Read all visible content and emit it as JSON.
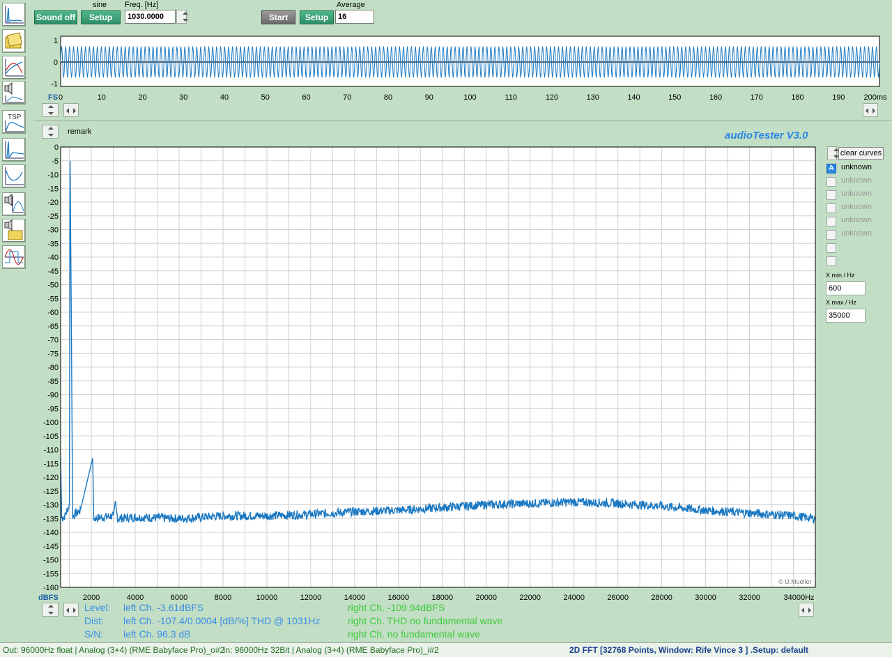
{
  "toolbar": {
    "sound_off_label": "Sound off",
    "signal_type": "sine",
    "setup_label": "Setup",
    "freq_label": "Freq. [Hz]",
    "freq_value": "1030.0000",
    "start_label": "Start",
    "setup2_label": "Setup",
    "average_label": "Average",
    "average_value": "16"
  },
  "left_tools": [
    {
      "icon": "fft-tool-icon"
    },
    {
      "icon": "folder-tool-icon"
    },
    {
      "icon": "frequency-response-tool-icon"
    },
    {
      "icon": "speaker-measure-tool-icon"
    },
    {
      "icon": "tsp-tool-icon",
      "label": "TSP"
    },
    {
      "icon": "impulse-tool-icon"
    },
    {
      "icon": "impedance-tool-icon"
    },
    {
      "icon": "speaker-response-tool-icon"
    },
    {
      "icon": "speaker-folder-tool-icon"
    },
    {
      "icon": "oscilloscope-tool-icon"
    }
  ],
  "scope": {
    "y_ticks": [
      "1",
      "0",
      "-1"
    ],
    "x_axis_label": "FS",
    "x_ticks": [
      "0",
      "10",
      "20",
      "30",
      "40",
      "50",
      "60",
      "70",
      "80",
      "90",
      "100",
      "110",
      "120",
      "130",
      "140",
      "150",
      "160",
      "170",
      "180",
      "190",
      "200ms"
    ],
    "signal_color": "#1a78c2",
    "signal_cycles": 206,
    "signal_amplitude": 0.62,
    "x_max_ms": 200
  },
  "fft": {
    "remark_label": "remark",
    "brand": "audioTester  V3.0",
    "y_unit": "dBFS",
    "watermark": "© U.Mueller"
  },
  "chart_data": {
    "type": "line",
    "title": "",
    "xlabel": "Hz",
    "ylabel": "dBFS",
    "xlim": [
      600,
      35000
    ],
    "ylim": [
      -160,
      0
    ],
    "x_ticks": [
      "2000",
      "4000",
      "6000",
      "8000",
      "10000",
      "12000",
      "14000",
      "16000",
      "18000",
      "20000",
      "22000",
      "24000",
      "26000",
      "28000",
      "30000",
      "32000",
      "34000Hz"
    ],
    "y_ticks": [
      "0",
      "-5",
      "-10",
      "-15",
      "-20",
      "-25",
      "-30",
      "-35",
      "-40",
      "-45",
      "-50",
      "-55",
      "-60",
      "-65",
      "-70",
      "-75",
      "-80",
      "-85",
      "-90",
      "-95",
      "-100",
      "-105",
      "-110",
      "-115",
      "-120",
      "-125",
      "-130",
      "-135",
      "-140",
      "-145",
      "-150",
      "-155",
      "-160"
    ],
    "grid": true,
    "color": "#1a78c2",
    "series": [
      {
        "points": [
          [
            600,
            -113
          ],
          [
            650,
            -135
          ],
          [
            800,
            -134
          ],
          [
            1000,
            -130
          ],
          [
            1031,
            -5
          ],
          [
            1080,
            -54
          ],
          [
            1150,
            -134
          ],
          [
            1500,
            -132
          ],
          [
            2062,
            -113
          ],
          [
            2110,
            -135
          ],
          [
            3000,
            -134
          ],
          [
            3093,
            -130
          ],
          [
            3200,
            -135
          ],
          [
            4000,
            -134.5
          ],
          [
            6000,
            -135
          ],
          [
            8000,
            -134
          ],
          [
            10000,
            -134
          ],
          [
            12000,
            -133.5
          ],
          [
            14000,
            -132.5
          ],
          [
            16000,
            -132
          ],
          [
            18000,
            -131
          ],
          [
            20000,
            -130
          ],
          [
            22000,
            -129.5
          ],
          [
            24000,
            -129
          ],
          [
            26000,
            -129.5
          ],
          [
            28000,
            -130.5
          ],
          [
            30000,
            -132
          ],
          [
            32000,
            -133
          ],
          [
            34000,
            -134
          ],
          [
            35000,
            -135
          ]
        ]
      }
    ],
    "curves": [
      {
        "label": "A",
        "name": "unknown",
        "active": true
      },
      {
        "label": "",
        "name": "unknown",
        "active": false
      },
      {
        "label": "",
        "name": "unknown",
        "active": false
      },
      {
        "label": "",
        "name": "unknown",
        "active": false
      },
      {
        "label": "",
        "name": "unknown",
        "active": false
      },
      {
        "label": "",
        "name": "unknown",
        "active": false
      },
      {
        "label": "",
        "name": "",
        "active": false
      },
      {
        "label": "",
        "name": "",
        "active": false
      }
    ]
  },
  "right_panel": {
    "clear_curves_label": "clear curves",
    "xmin_label": "X min / Hz",
    "xmin_value": "600",
    "xmax_label": "X max / Hz",
    "xmax_value": "35000"
  },
  "results": {
    "level_label": "Level:",
    "dist_label": "Dist:",
    "sn_label": "S/N:",
    "left_level": "left Ch. -3.61dBFS",
    "left_dist": "left Ch. -107.4/0.0004 [dB/%] THD @ 1031Hz",
    "left_sn": "left Ch. 96.3 dB",
    "right_level": "right Ch. -109.94dBFS",
    "right_dist": "right Ch. THD no fundamental wave",
    "right_sn": "right Ch.  no fundamental wave",
    "left_color": "#3a8ee6",
    "right_color": "#3ecb3e"
  },
  "status": {
    "out": "Out: 96000Hz float  | Analog (3+4) (RME Babyface Pro)_o#2",
    "in": "In: 96000Hz 32Bit  | Analog (3+4) (RME Babyface Pro)_i#2",
    "mode": "2D FFT [32768 Points, Window: Rife Vince 3 ]  .Setup:  default"
  }
}
